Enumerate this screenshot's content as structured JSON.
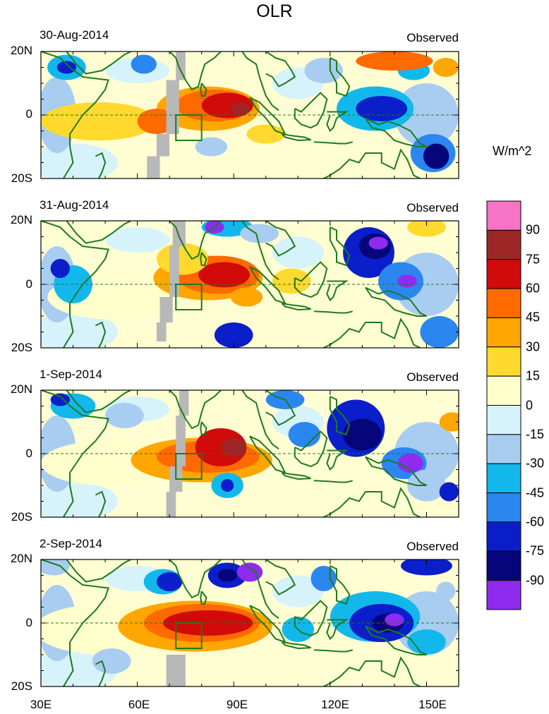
{
  "title": "OLR",
  "units": "W/m^2",
  "panels": [
    {
      "date": "30-Aug-2014",
      "tag": "Observed"
    },
    {
      "date": "31-Aug-2014",
      "tag": "Observed"
    },
    {
      "date": "1-Sep-2014",
      "tag": "Observed"
    },
    {
      "date": "2-Sep-2014",
      "tag": "Observed"
    }
  ],
  "lat_labels": [
    "20N",
    "0",
    "20S"
  ],
  "lon_labels": [
    "30E",
    "60E",
    "90E",
    "120E",
    "150E"
  ],
  "colorbar": {
    "labels": [
      "90",
      "75",
      "60",
      "45",
      "30",
      "15",
      "0",
      "-15",
      "-30",
      "-45",
      "-60",
      "-75",
      "-90"
    ],
    "colors": [
      "#f673c6",
      "#9e2626",
      "#d10a0a",
      "#ff6a00",
      "#ffa600",
      "#ffd92e",
      "#ffffcc",
      "#d6f3fb",
      "#a8cdf0",
      "#12b8ec",
      "#2b86f0",
      "#0a1fc9",
      "#06067a",
      "#8e2bef"
    ]
  },
  "map": {
    "lon_range": [
      30,
      160
    ],
    "lat_range": [
      -20,
      20
    ],
    "box_region": {
      "lon": [
        72,
        80
      ],
      "lat": [
        -8,
        0
      ]
    },
    "land_color": "#1f7a1f",
    "missing_color": "#b8b8b8"
  }
}
